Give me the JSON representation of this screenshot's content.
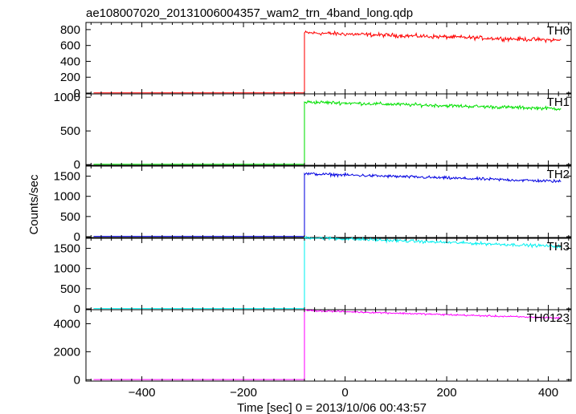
{
  "chart_data": {
    "type": "line",
    "title": "ae108007020_20131006004357_wam2_trn_4band_long.qdp",
    "xlabel": "Time [sec] 0 = 2013/10/06 00:43:57",
    "ylabel": "Counts/sec",
    "xlim": [
      -510,
      445
    ],
    "xticks": [
      -400,
      -200,
      0,
      200,
      400
    ],
    "grid": false,
    "event_time": -80,
    "panels": [
      {
        "name": "TH0",
        "color": "#ff0000",
        "ylim": [
          -10,
          890
        ],
        "yticks": [
          0,
          200,
          400,
          600,
          800
        ],
        "series": {
          "pre_level": 3,
          "post_start": 760,
          "post_end": 665,
          "noise": 38
        }
      },
      {
        "name": "TH1",
        "color": "#00e000",
        "ylim": [
          -10,
          1050
        ],
        "yticks": [
          0,
          500,
          1000
        ],
        "series": {
          "pre_level": 5,
          "post_start": 930,
          "post_end": 830,
          "noise": 38
        }
      },
      {
        "name": "TH2",
        "color": "#0000e0",
        "ylim": [
          -20,
          1750
        ],
        "yticks": [
          0,
          500,
          1000,
          1500
        ],
        "series": {
          "pre_level": 8,
          "post_start": 1560,
          "post_end": 1370,
          "noise": 55
        }
      },
      {
        "name": "TH3",
        "color": "#00f0f0",
        "ylim": [
          -20,
          1750
        ],
        "yticks": [
          0,
          500,
          1000,
          1500
        ],
        "series": {
          "pre_level": 8,
          "post_start": 1770,
          "post_end": 1550,
          "noise": 55
        }
      },
      {
        "name": "TH0123",
        "color": "#ff00ff",
        "ylim": [
          -100,
          5000
        ],
        "yticks": [
          0,
          2000,
          4000
        ],
        "series": {
          "pre_level": 10,
          "post_start": 4950,
          "post_end": 4400,
          "noise": 90
        }
      }
    ]
  }
}
